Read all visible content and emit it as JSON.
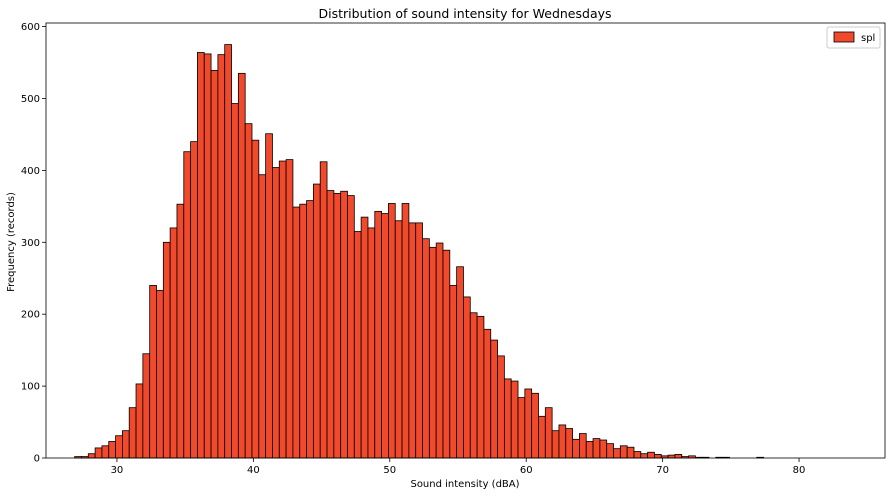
{
  "chart_data": {
    "type": "bar",
    "title": "Distribution of sound intensity for Wednesdays",
    "xlabel": "Sound intensity (dBA)",
    "ylabel": "Frequency (records)",
    "xlim": [
      24.8,
      86.3
    ],
    "ylim": [
      0,
      605
    ],
    "xticks": [
      30,
      40,
      50,
      60,
      70,
      80
    ],
    "yticks": [
      0,
      100,
      200,
      300,
      400,
      500,
      600
    ],
    "bin_start": 26.9,
    "bin_width": 0.5,
    "legend": {
      "position": "top-right",
      "entries": [
        "spl"
      ]
    },
    "bar_color": "#f0492b",
    "edge_color": "#000000",
    "series": [
      {
        "name": "spl",
        "values": [
          2,
          2,
          6,
          14,
          17,
          23,
          31,
          38,
          70,
          103,
          145,
          240,
          233,
          300,
          320,
          353,
          426,
          440,
          564,
          562,
          539,
          561,
          575,
          493,
          535,
          465,
          442,
          394,
          451,
          404,
          413,
          415,
          349,
          353,
          358,
          381,
          412,
          372,
          368,
          371,
          365,
          315,
          335,
          320,
          343,
          340,
          354,
          330,
          354,
          327,
          327,
          305,
          293,
          299,
          289,
          240,
          266,
          224,
          202,
          197,
          179,
          164,
          142,
          110,
          107,
          84,
          96,
          90,
          58,
          70,
          38,
          46,
          41,
          26,
          34,
          23,
          27,
          25,
          20,
          13,
          17,
          15,
          9,
          6,
          8,
          5,
          3,
          4,
          5,
          2,
          3,
          1,
          1,
          0,
          1,
          1,
          0,
          0,
          0,
          0,
          1
        ]
      }
    ]
  }
}
